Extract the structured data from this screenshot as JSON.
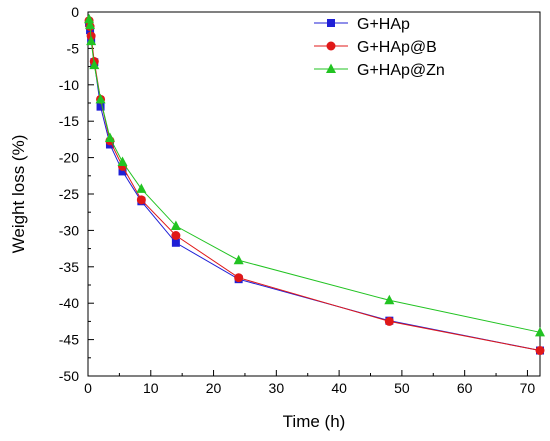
{
  "chart_data": {
    "type": "line",
    "xlabel": "Time (h)",
    "ylabel": "Weight loss (%)",
    "xlim": [
      0,
      72
    ],
    "ylim": [
      -50,
      0
    ],
    "xticks": [
      0,
      10,
      20,
      30,
      40,
      50,
      60,
      70
    ],
    "yticks": [
      0,
      -5,
      -10,
      -15,
      -20,
      -25,
      -30,
      -35,
      -40,
      -45,
      -50
    ],
    "grid": false,
    "legend_position": "top-right",
    "series": [
      {
        "name": "G+HAp",
        "color": "#1f1fd6",
        "marker": "square",
        "x": [
          0.17,
          0.33,
          0.5,
          1,
          2,
          3.5,
          5.5,
          8.5,
          14,
          24,
          48,
          72
        ],
        "y": [
          -1.5,
          -2.5,
          -3.8,
          -6.9,
          -13.0,
          -18.2,
          -21.9,
          -26.0,
          -31.7,
          -36.7,
          -42.4,
          -46.5
        ]
      },
      {
        "name": "G+HAp@B",
        "color": "#e01818",
        "marker": "circle",
        "x": [
          0.17,
          0.33,
          0.5,
          1,
          2,
          3.5,
          5.5,
          8.5,
          14,
          24,
          48,
          72
        ],
        "y": [
          -1.2,
          -2.0,
          -3.3,
          -6.8,
          -12.0,
          -17.7,
          -21.2,
          -25.8,
          -30.7,
          -36.5,
          -42.5,
          -46.5
        ]
      },
      {
        "name": "G+HAp@Zn",
        "color": "#22c322",
        "marker": "triangle",
        "x": [
          0.17,
          0.33,
          0.5,
          1,
          2,
          3.5,
          5.5,
          8.5,
          14,
          24,
          48,
          72
        ],
        "y": [
          -1.0,
          -1.8,
          -4.0,
          -7.3,
          -12.0,
          -17.3,
          -20.6,
          -24.3,
          -29.4,
          -34.1,
          -39.6,
          -44.0
        ]
      }
    ]
  }
}
